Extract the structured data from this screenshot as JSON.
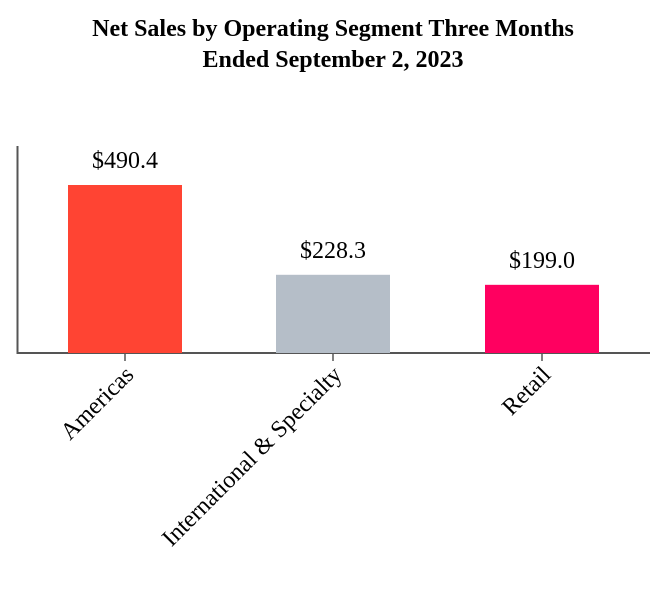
{
  "chart_data": {
    "type": "bar",
    "title_lines": [
      "Net Sales by Operating Segment Three Months",
      "Ended September 2, 2023"
    ],
    "categories": [
      "Americas",
      "International & Specialty",
      "Retail"
    ],
    "values": [
      490.4,
      228.3,
      199.0
    ],
    "data_labels": [
      "$490.4",
      "$228.3",
      "$199.0"
    ],
    "colors": [
      "#ff4433",
      "#b5bec8",
      "#ff0060"
    ],
    "xlabel": "",
    "ylabel": "",
    "ylim": [
      0,
      600
    ],
    "grid": false,
    "legend": "none"
  }
}
